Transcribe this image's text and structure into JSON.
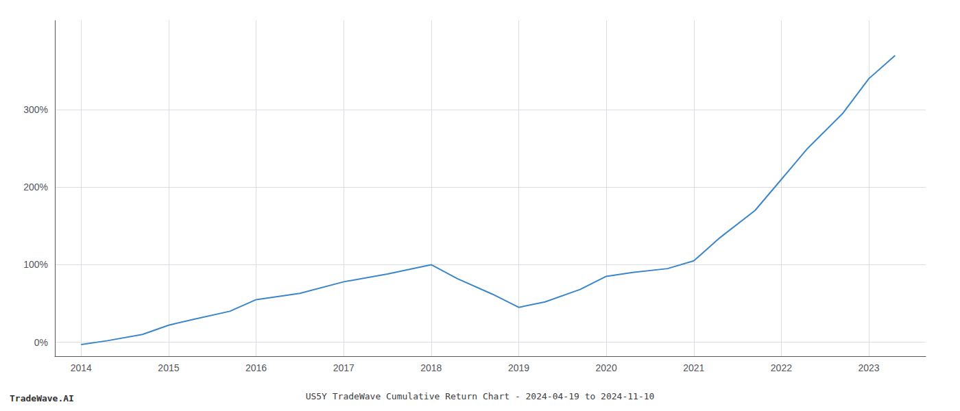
{
  "chart_data": {
    "type": "line",
    "title": "US5Y TradeWave Cumulative Return Chart - 2024-04-19 to 2024-11-10",
    "annotations": [
      "TradeWave.AI"
    ],
    "x": [
      2014.0,
      2014.3,
      2014.7,
      2015.0,
      2015.3,
      2015.7,
      2016.0,
      2016.5,
      2017.0,
      2017.5,
      2018.0,
      2018.3,
      2018.7,
      2019.0,
      2019.3,
      2019.7,
      2020.0,
      2020.3,
      2020.7,
      2021.0,
      2021.3,
      2021.7,
      2022.0,
      2022.3,
      2022.7,
      2023.0,
      2023.3
    ],
    "values": [
      -3,
      2,
      10,
      22,
      30,
      40,
      55,
      63,
      78,
      88,
      100,
      82,
      62,
      45,
      52,
      68,
      85,
      90,
      95,
      105,
      135,
      170,
      210,
      250,
      295,
      340,
      370
    ],
    "color": "#3a86c8",
    "xlim": [
      2013.7,
      2023.65
    ],
    "xticks": [
      2014,
      2015,
      2016,
      2017,
      2018,
      2019,
      2020,
      2021,
      2022,
      2023
    ],
    "ylim": [
      -18,
      415
    ],
    "yticks": [
      {
        "value": 0,
        "label": "0%"
      },
      {
        "value": 100,
        "label": "100%"
      },
      {
        "value": 200,
        "label": "200%"
      },
      {
        "value": 300,
        "label": "300%"
      }
    ],
    "grid": true
  }
}
